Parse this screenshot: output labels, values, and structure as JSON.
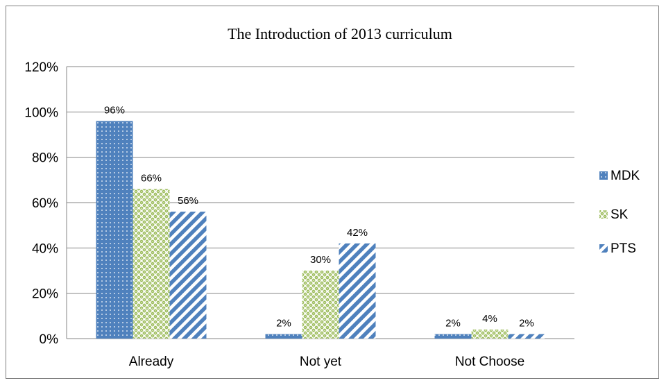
{
  "chart_data": {
    "type": "bar",
    "title": "The Introduction of  2013 curriculum",
    "categories": [
      "Already",
      "Not yet",
      "Not Choose"
    ],
    "series": [
      {
        "name": "MDK",
        "values": [
          96,
          2,
          2
        ],
        "labels": [
          "96%",
          "2%",
          "2%"
        ],
        "color": "#4f81bd",
        "pattern": "dots"
      },
      {
        "name": "SK",
        "values": [
          66,
          30,
          4
        ],
        "labels": [
          "66%",
          "30%",
          "4%"
        ],
        "color": "#9bbb59",
        "pattern": "weave"
      },
      {
        "name": "PTS",
        "values": [
          56,
          42,
          2
        ],
        "labels": [
          "56%",
          "42%",
          "2%"
        ],
        "color": "#4f81bd",
        "pattern": "diagonal"
      }
    ],
    "y_ticks": [
      "0%",
      "20%",
      "40%",
      "60%",
      "80%",
      "100%",
      "120%"
    ],
    "ylim": [
      0,
      120
    ],
    "y_unit": "%",
    "grid": true,
    "legend_position": "right"
  }
}
